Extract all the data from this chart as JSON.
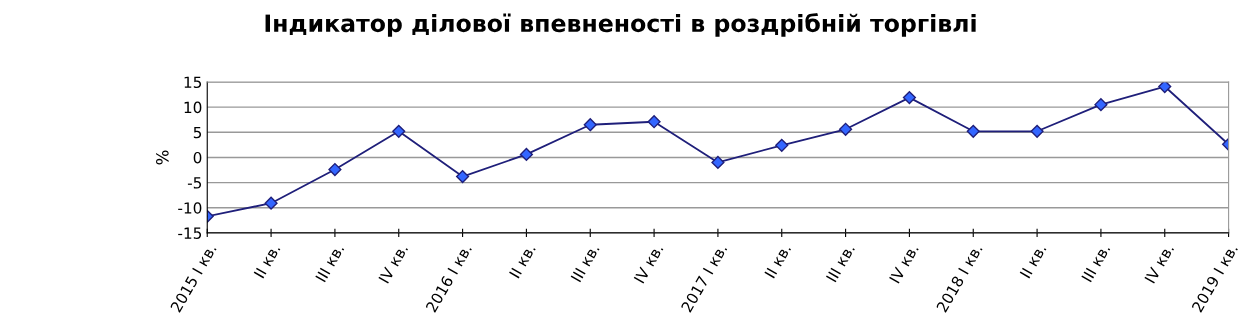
{
  "chart_data": {
    "type": "line",
    "title": "Індикатор ділової впевненості в роздрібній торгівлі",
    "ylabel": "%",
    "categories": [
      "2015 I кв.",
      "II кв.",
      "III кв.",
      "IV кв.",
      "2016 I кв.",
      "II кв.",
      "III кв.",
      "IV кв.",
      "2017 I кв.",
      "II кв.",
      "III кв.",
      "IV кв.",
      "2018 I кв.",
      "II кв.",
      "III кв.",
      "IV кв.",
      "2019 I кв."
    ],
    "series": [
      {
        "color": "#1f1f7a",
        "values": [
          -11.7,
          -9.1,
          -2.4,
          5.2,
          -3.8,
          0.6,
          6.5,
          7.1,
          -1.0,
          2.4,
          5.6,
          11.9,
          5.2,
          5.2,
          10.5,
          14.1,
          2.6
        ]
      }
    ],
    "ylim": [
      -15,
      15
    ],
    "yticks": [
      -15,
      -10,
      -5,
      0,
      5,
      10,
      15
    ],
    "grid": "y",
    "marker": "diamond",
    "line_style": "solid"
  }
}
